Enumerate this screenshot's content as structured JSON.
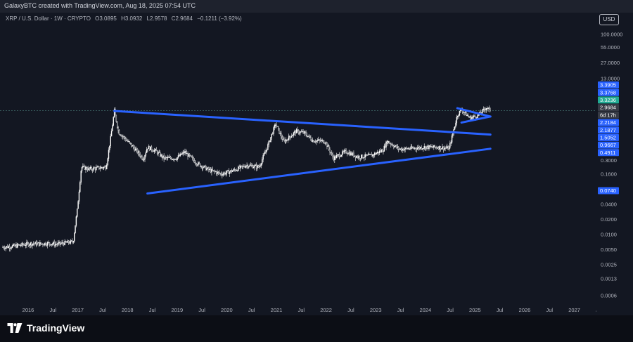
{
  "header": {
    "credit": "GalaxyBTC created with TradingView.com, Aug 18, 2025 07:54 UTC",
    "currency_button": "USD"
  },
  "legend": {
    "symbol": "XRP / U.S. Dollar · 1W · CRYPTO",
    "open": "O3.0895",
    "high": "H3.0932",
    "low": "L2.9578",
    "close": "C2.9684",
    "change": "−0.1211 (−3.92%)"
  },
  "footer": {
    "brand": "TradingView"
  },
  "colors": {
    "background": "#131722",
    "candle": "#ffffff",
    "trendline": "#2962ff",
    "price_tag_blue": "#2962ff",
    "price_tag_green": "#22ab94",
    "price_tag_grey": "#363a45"
  },
  "chart_data": {
    "type": "candlestick",
    "title": "XRP / U.S. Dollar · 1W · CRYPTO",
    "y_scale": "log",
    "ylim": [
      0.0004,
      150
    ],
    "y_ticks": [
      "100.0000",
      "55.0000",
      "27.0000",
      "13.0000",
      "0.3000",
      "0.1600",
      "0.0400",
      "0.0200",
      "0.0100",
      "0.0050",
      "0.0025",
      "0.0013",
      "0.0006"
    ],
    "x_ticks": [
      "2016",
      "Jul",
      "2017",
      "Jul",
      "2018",
      "Jul",
      "2019",
      "Jul",
      "2020",
      "Jul",
      "2021",
      "Jul",
      "2022",
      "Jul",
      "2023",
      "Jul",
      "2024",
      "Jul",
      "2025",
      "Jul",
      "2026",
      "Jul",
      "2027",
      "Jul"
    ],
    "price_tags": [
      {
        "label": "3.3905",
        "kind": "blue"
      },
      {
        "label": "3.3768",
        "kind": "blue"
      },
      {
        "label": "3.3236",
        "kind": "green"
      },
      {
        "label": "2.9684",
        "kind": "grey"
      },
      {
        "label": "6d 17h",
        "kind": "grey"
      },
      {
        "label": "2.2184",
        "kind": "blue"
      },
      {
        "label": "2.1877",
        "kind": "blue"
      },
      {
        "label": "1.5052",
        "kind": "blue"
      },
      {
        "label": "0.9667",
        "kind": "blue"
      },
      {
        "label": "0.4911",
        "kind": "blue"
      },
      {
        "label": "0.0740",
        "kind": "blue"
      }
    ],
    "weekly_close_path": [
      [
        "2015-10",
        0.0055
      ],
      [
        "2016-01",
        0.0058
      ],
      [
        "2016-03",
        0.0062
      ],
      [
        "2016-05",
        0.0065
      ],
      [
        "2016-07",
        0.0064
      ],
      [
        "2016-09",
        0.0066
      ],
      [
        "2016-11",
        0.0063
      ],
      [
        "2017-01",
        0.0067
      ],
      [
        "2017-03",
        0.007
      ],
      [
        "2017-04",
        0.03
      ],
      [
        "2017-05",
        0.22
      ],
      [
        "2017-07",
        0.2
      ],
      [
        "2017-09",
        0.21
      ],
      [
        "2017-11",
        0.22
      ],
      [
        "2017-12",
        0.75
      ],
      [
        "2018-01",
        2.9
      ],
      [
        "2018-02",
        1.1
      ],
      [
        "2018-04",
        0.75
      ],
      [
        "2018-06",
        0.5
      ],
      [
        "2018-08",
        0.32
      ],
      [
        "2018-09",
        0.55
      ],
      [
        "2018-11",
        0.46
      ],
      [
        "2019-01",
        0.33
      ],
      [
        "2019-04",
        0.33
      ],
      [
        "2019-06",
        0.44
      ],
      [
        "2019-09",
        0.26
      ],
      [
        "2019-12",
        0.19
      ],
      [
        "2020-03",
        0.16
      ],
      [
        "2020-06",
        0.19
      ],
      [
        "2020-09",
        0.24
      ],
      [
        "2020-12",
        0.22
      ],
      [
        "2021-02",
        0.55
      ],
      [
        "2021-04",
        1.6
      ],
      [
        "2021-06",
        0.7
      ],
      [
        "2021-09",
        1.15
      ],
      [
        "2021-11",
        1.05
      ],
      [
        "2022-01",
        0.75
      ],
      [
        "2022-04",
        0.72
      ],
      [
        "2022-06",
        0.33
      ],
      [
        "2022-09",
        0.45
      ],
      [
        "2022-12",
        0.35
      ],
      [
        "2023-03",
        0.37
      ],
      [
        "2023-06",
        0.48
      ],
      [
        "2023-07",
        0.72
      ],
      [
        "2023-10",
        0.5
      ],
      [
        "2024-01",
        0.52
      ],
      [
        "2024-04",
        0.55
      ],
      [
        "2024-07",
        0.55
      ],
      [
        "2024-10",
        0.52
      ],
      [
        "2024-11",
        1.1
      ],
      [
        "2024-12",
        2.4
      ],
      [
        "2025-01",
        3.1
      ],
      [
        "2025-03",
        2.1
      ],
      [
        "2025-05",
        2.35
      ],
      [
        "2025-07",
        3.4
      ],
      [
        "2025-08",
        2.97
      ]
    ],
    "trendlines": [
      {
        "name": "descending resistance",
        "from": [
          "2018-01",
          2.9
        ],
        "to": [
          "2025-08",
          0.98
        ]
      },
      {
        "name": "ascending support",
        "from": [
          "2018-09",
          0.065
        ],
        "to": [
          "2025-08",
          0.51
        ]
      },
      {
        "name": "pennant upper",
        "from": [
          "2024-12",
          3.3
        ],
        "to": [
          "2025-08",
          2.25
        ]
      },
      {
        "name": "pennant lower",
        "from": [
          "2025-01",
          1.7
        ],
        "to": [
          "2025-08",
          2.25
        ]
      }
    ],
    "reference_price": 2.9684
  }
}
